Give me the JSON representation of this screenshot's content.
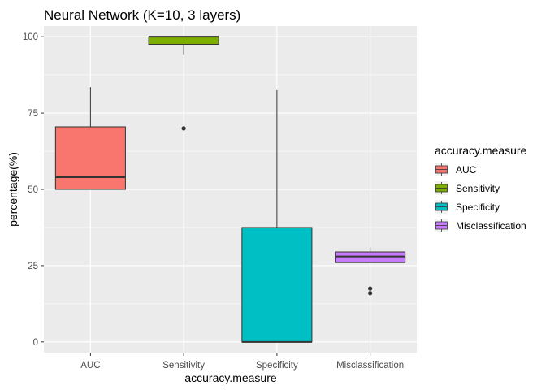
{
  "chart_data": {
    "type": "boxplot",
    "title": "Neural Network (K=10, 3 layers)",
    "xlabel": "accuracy.measure",
    "ylabel": "percentage(%)",
    "ylim": [
      -3.5,
      103.5
    ],
    "yticks": [
      0,
      25,
      50,
      75,
      100
    ],
    "y_tick_labels": [
      "0",
      "25",
      "50",
      "75",
      "100"
    ],
    "categories": [
      "AUC",
      "Sensitivity",
      "Specificity",
      "Misclassification"
    ],
    "legend": {
      "title": "accuracy.measure",
      "position": "right",
      "entries": [
        "AUC",
        "Sensitivity",
        "Specificity",
        "Misclassification"
      ]
    },
    "background": "#ebebeb",
    "grid": true,
    "boxes": [
      {
        "name": "AUC",
        "color": "#f8766d",
        "whisker_low": 50,
        "q1": 50,
        "median": 54,
        "q3": 70.5,
        "whisker_high": 83.5,
        "outliers": []
      },
      {
        "name": "Sensitivity",
        "color": "#7cae00",
        "whisker_low": 94,
        "q1": 97.5,
        "median": 100,
        "q3": 100,
        "whisker_high": 100,
        "outliers": [
          70
        ]
      },
      {
        "name": "Specificity",
        "color": "#00bfc4",
        "whisker_low": 0,
        "q1": 0,
        "median": 0,
        "q3": 37.5,
        "whisker_high": 82.5,
        "outliers": []
      },
      {
        "name": "Misclassification",
        "color": "#c77cff",
        "whisker_low": 26,
        "q1": 26,
        "median": 28,
        "q3": 29.5,
        "whisker_high": 31,
        "outliers": [
          17.5,
          16
        ]
      }
    ]
  }
}
